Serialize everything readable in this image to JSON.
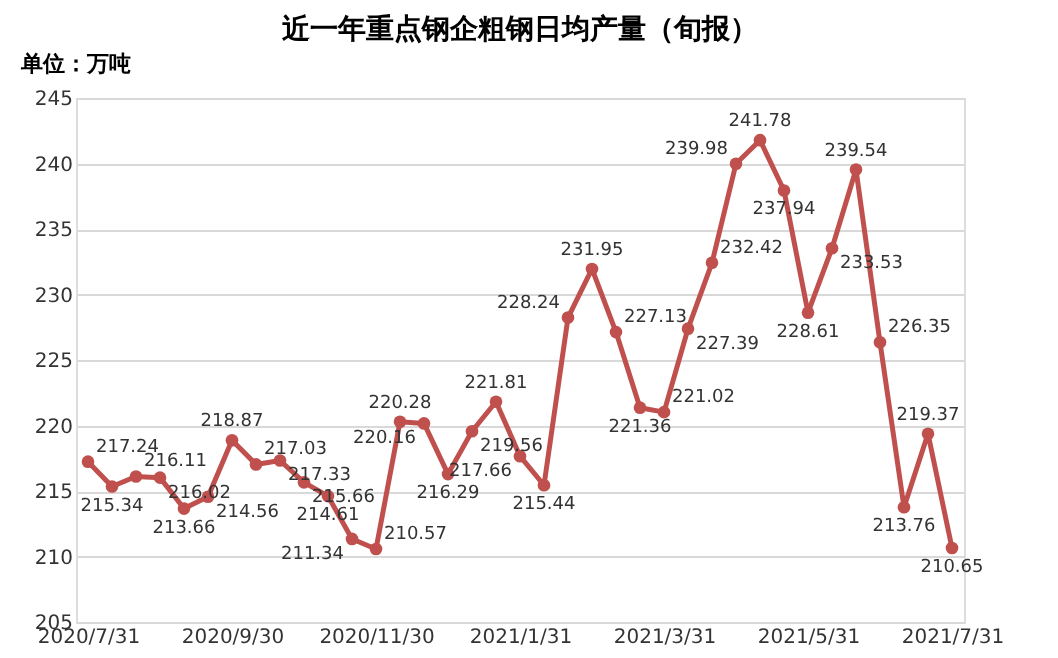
{
  "chart_data": {
    "type": "line",
    "title": "近一年重点钢企粗钢日均产量（旬报）",
    "ylabel": "单位：万吨",
    "categories": [
      "2020/7/31",
      null,
      null,
      null,
      null,
      null,
      "2020/9/30",
      null,
      null,
      null,
      null,
      null,
      "2020/11/30",
      null,
      null,
      null,
      null,
      null,
      "2021/1/31",
      null,
      null,
      null,
      null,
      null,
      "2021/3/31",
      null,
      null,
      null,
      null,
      null,
      "2021/5/31",
      null,
      null,
      null,
      null,
      null,
      "2021/7/31"
    ],
    "series": [
      {
        "color": "#c0504d",
        "values": [
          217.24,
          215.34,
          216.11,
          216.02,
          213.66,
          214.56,
          218.87,
          217.03,
          217.33,
          215.66,
          214.61,
          211.34,
          210.57,
          220.28,
          220.16,
          216.29,
          219.56,
          221.81,
          217.66,
          215.44,
          228.24,
          231.95,
          227.13,
          221.36,
          221.02,
          227.39,
          232.42,
          239.98,
          241.78,
          237.94,
          228.61,
          233.53,
          239.54,
          226.35,
          213.76,
          219.37,
          210.65
        ]
      }
    ],
    "ylim": [
      205,
      245
    ],
    "yticks": [
      205,
      210,
      215,
      220,
      225,
      230,
      235,
      240,
      245
    ],
    "grid": "y",
    "marker": "circle",
    "line_style": "solid",
    "data_labels": true
  }
}
